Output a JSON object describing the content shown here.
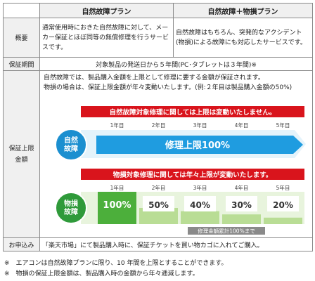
{
  "header": {
    "col1": "自然故障プラン",
    "col2": "自然故障＋物損プラン"
  },
  "overview": {
    "label": "概要",
    "col1": "通常使用時におきた自然故障に対して、メーカー保証とほぼ同等の無償修理を行うサービスです。",
    "col2": "自然故障はもちろん、突発的なアクシデント(物損)による故障にも対応したサービスです。"
  },
  "period": {
    "label": "保証期間",
    "text": "対象製品の発送日から５年間(PC･タブレットは３年間)※"
  },
  "guarantee": {
    "label": "保証上限金額",
    "text1": "自然故障では、製品購入金額を上限として修理に要する金額が保証されます。",
    "text2": "物損の場合は、保証上限金額が年々変動いたします。(例:２年目は製品購入金額の50%)",
    "natural_banner": "自然故障対象修理に関しては上限は変動いたしません。",
    "natural_badge": "自然故障",
    "natural_arrow": "修理上限100%",
    "damage_banner": "物損対象修理に関しては年々上限が変動いたします。",
    "damage_badge": "物損故障",
    "damage_caption": "修理金額累計100%まで",
    "years": [
      "1年目",
      "2年目",
      "3年目",
      "4年目",
      "5年目"
    ]
  },
  "chart_data": {
    "type": "bar",
    "categories": [
      "1年目",
      "2年目",
      "3年目",
      "4年目",
      "5年目"
    ],
    "values": [
      100,
      50,
      40,
      30,
      20
    ],
    "labels": [
      "100%",
      "50%",
      "40%",
      "30%",
      "20%"
    ]
  },
  "apply": {
    "label": "お申込み",
    "text": "「楽天市場」にて製品購入時に、保証チケットを買い物カゴに入れてご購入。"
  },
  "notes": [
    "※　エアコンは自然故障プランに限り、10 年間を上限とすることができます。",
    "※　物損の保証上限金額は、製品購入時の金額から年々逓減します。"
  ],
  "colors": {
    "banner_red": "#d9141c",
    "natural_blue": "#1b8fd0",
    "arrow_blue": "#1f9ce0",
    "damage_green": "#2f9a3a",
    "bar_green": "#4caf3b",
    "bar_fill_light": "#b9dd95"
  }
}
